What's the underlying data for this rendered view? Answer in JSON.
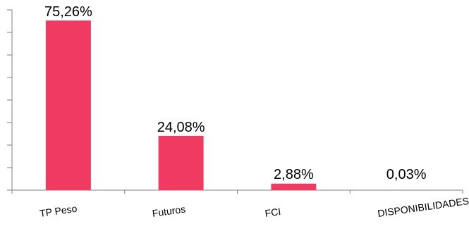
{
  "chart_data": {
    "type": "bar",
    "categories": [
      "TP Peso",
      "Futuros",
      "FCI",
      "DISPONIBILIDADES"
    ],
    "values": [
      75.26,
      24.08,
      2.88,
      0.03
    ],
    "data_labels": [
      "75,26%",
      "24,08%",
      "2,88%",
      "0,03%"
    ],
    "title": "",
    "xlabel": "",
    "ylabel": "",
    "ylim": [
      0,
      80
    ],
    "y_ticks_shown": false,
    "grid": false,
    "legend": "none",
    "bar_color": "#EF3B61",
    "axis_color": "#808080"
  }
}
